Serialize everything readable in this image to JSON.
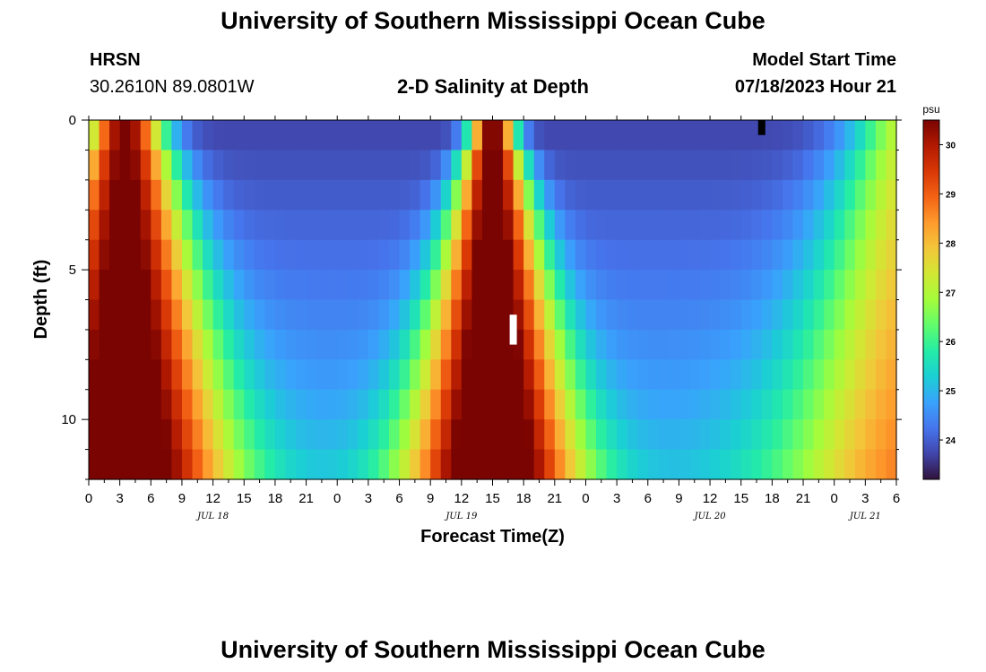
{
  "header": {
    "title": "University of Southern Mississippi Ocean Cube",
    "station": "HRSN",
    "coords": "30.2610N  89.0801W",
    "model_label": "Model Start Time",
    "model_time": "07/18/2023 Hour 21",
    "footer_title": "University of Southern Mississippi Ocean Cube"
  },
  "chart_data": {
    "type": "heatmap",
    "title": "2-D Salinity at Depth",
    "xlabel": "Forecast Time(Z)",
    "ylabel": "Depth (ft)",
    "x_hours_range": [
      0,
      78
    ],
    "y_range_ft": [
      0,
      12
    ],
    "x_tick_labels": [
      "0",
      "3",
      "6",
      "9",
      "12",
      "15",
      "18",
      "21",
      "0",
      "3",
      "6",
      "9",
      "12",
      "15",
      "18",
      "21",
      "0",
      "3",
      "6",
      "9",
      "12",
      "15",
      "18",
      "21",
      "0",
      "3",
      "6"
    ],
    "y_tick_labels": [
      {
        "depth": 0,
        "label": "0"
      },
      {
        "depth": 5,
        "label": "5"
      },
      {
        "depth": 10,
        "label": "10"
      }
    ],
    "date_labels": [
      {
        "hour": 12,
        "label": "JUL 18"
      },
      {
        "hour": 36,
        "label": "JUL 19"
      },
      {
        "hour": 60,
        "label": "JUL 20"
      },
      {
        "hour": 75,
        "label": "JUL 21"
      }
    ],
    "colorbar": {
      "unit": "psu",
      "min": 23.2,
      "max": 30.5,
      "ticks": [
        "24",
        "25",
        "26",
        "27",
        "28",
        "29",
        "30"
      ],
      "colors": [
        "#30123b",
        "#4145ab",
        "#4675ed",
        "#39a2fc",
        "#1bcfd4",
        "#24eca6",
        "#61fc6c",
        "#a4fc3b",
        "#d1e834",
        "#f3c63a",
        "#fe9b2d",
        "#f36315",
        "#d93806",
        "#b11901",
        "#7a0402"
      ]
    },
    "model": {
      "surface_base": 23.7,
      "bottom_base": 25.0,
      "pulses": [
        {
          "center_hour": 3.5,
          "sigma_surface": 2.3,
          "sigma_bottom": 7.0,
          "amplitude": 6.8
        },
        {
          "center_hour": 39.0,
          "sigma_surface": 1.2,
          "sigma_bottom": 5.8,
          "amplitude": 7.0
        },
        {
          "center_hour": 80.0,
          "sigma_surface": 4.0,
          "sigma_bottom": 9.0,
          "amplitude": 3.8
        }
      ],
      "range_psu": [
        23.2,
        30.5
      ]
    },
    "markers": [
      {
        "hour": 65.0,
        "depth_from": 0,
        "depth_to": 0.5,
        "color": "#000000"
      },
      {
        "hour": 41.0,
        "depth_from": 6.5,
        "depth_to": 7.5,
        "color": "#ffffff"
      }
    ]
  }
}
